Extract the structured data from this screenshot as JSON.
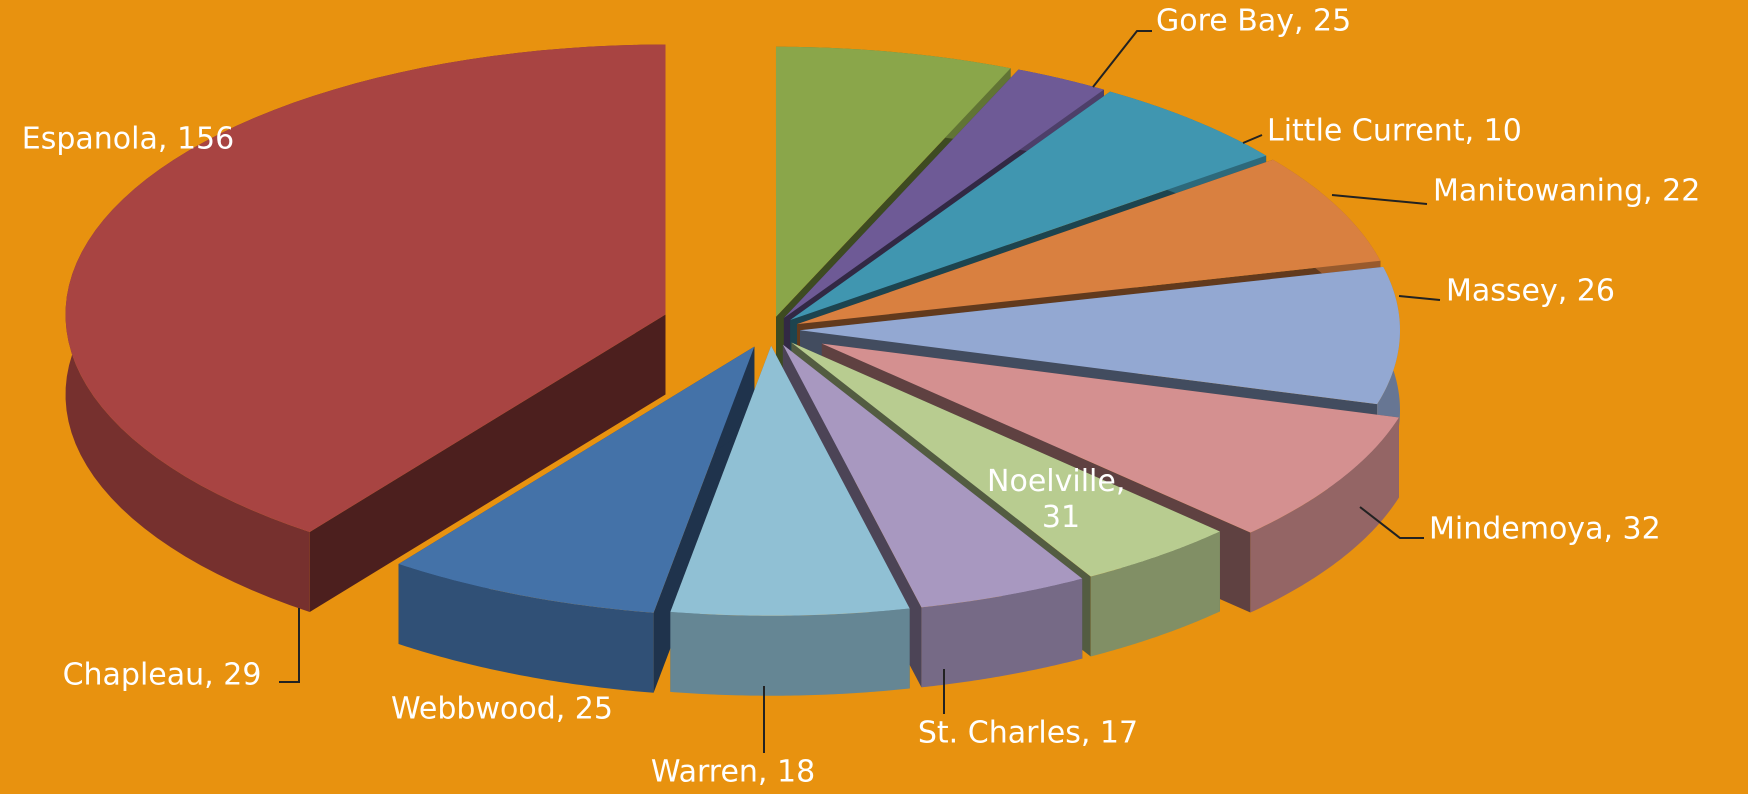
{
  "chart_data": {
    "type": "pie",
    "three_d": true,
    "exploded": true,
    "values": [
      25,
      10,
      22,
      26,
      32,
      31,
      17,
      18,
      25,
      29,
      156
    ],
    "value_labels": [
      "Gore Bay, 25",
      "Little Current, 10",
      "Manitowaning, 22",
      "Massey, 26",
      "Mindemoya, 32",
      "Noelville, 31",
      "St. Charles, 17",
      "Warren, 18",
      "Webbwood, 25",
      "Chapleau, 29",
      "Espanola, 156"
    ],
    "colors": [
      "#8aa64a",
      "#6e5a96",
      "#4096b0",
      "#d98040",
      "#93a8d2",
      "#d49090",
      "#b8cc90",
      "#a898c0",
      "#90c0d4",
      "#4472a8",
      "#a84442"
    ]
  }
}
